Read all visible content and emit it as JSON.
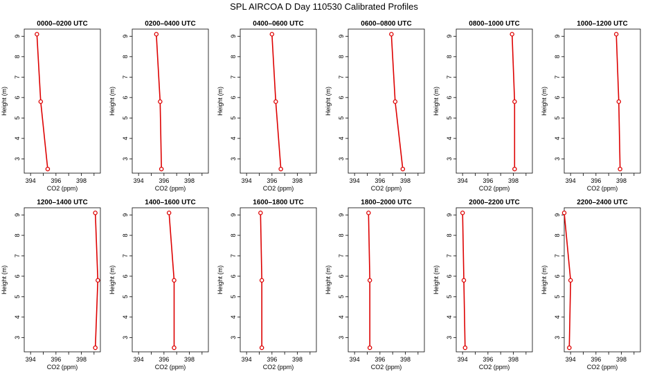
{
  "figure_title": "SPL AIRCOA D  Day 110530  Calibrated Profiles",
  "colors": {
    "profile_line": "#dd0000",
    "axes": "#000000",
    "background": "#ffffff"
  },
  "chart_data": [
    {
      "type": "line",
      "title": "0000–0200 UTC",
      "xlabel": "CO2 (ppm)",
      "ylabel": "Height (m)",
      "xlim": [
        393.5,
        399.5
      ],
      "ylim": [
        2.3,
        9.35
      ],
      "xticks": [
        394,
        396,
        398
      ],
      "yticks": [
        3,
        4,
        5,
        6,
        7,
        8,
        9
      ],
      "series": [
        {
          "x": [
            395.35,
            394.8,
            394.5
          ],
          "y": [
            2.5,
            5.8,
            9.1
          ]
        }
      ]
    },
    {
      "type": "line",
      "title": "0200–0400 UTC",
      "xlabel": "CO2 (ppm)",
      "ylabel": "Height (m)",
      "xlim": [
        393.5,
        399.5
      ],
      "ylim": [
        2.3,
        9.35
      ],
      "xticks": [
        394,
        396,
        398
      ],
      "yticks": [
        3,
        4,
        5,
        6,
        7,
        8,
        9
      ],
      "series": [
        {
          "x": [
            395.8,
            395.7,
            395.4
          ],
          "y": [
            2.5,
            5.8,
            9.1
          ]
        }
      ]
    },
    {
      "type": "line",
      "title": "0400–0600 UTC",
      "xlabel": "CO2 (ppm)",
      "ylabel": "Height (m)",
      "xlim": [
        393.5,
        399.5
      ],
      "ylim": [
        2.3,
        9.35
      ],
      "xticks": [
        394,
        396,
        398
      ],
      "yticks": [
        3,
        4,
        5,
        6,
        7,
        8,
        9
      ],
      "series": [
        {
          "x": [
            396.7,
            396.3,
            396.0
          ],
          "y": [
            2.5,
            5.8,
            9.1
          ]
        }
      ]
    },
    {
      "type": "line",
      "title": "0600–0800 UTC",
      "xlabel": "CO2 (ppm)",
      "ylabel": "Height (m)",
      "xlim": [
        393.5,
        399.5
      ],
      "ylim": [
        2.3,
        9.35
      ],
      "xticks": [
        394,
        396,
        398
      ],
      "yticks": [
        3,
        4,
        5,
        6,
        7,
        8,
        9
      ],
      "series": [
        {
          "x": [
            397.8,
            397.2,
            396.9
          ],
          "y": [
            2.5,
            5.8,
            9.1
          ]
        }
      ]
    },
    {
      "type": "line",
      "title": "0800–1000 UTC",
      "xlabel": "CO2 (ppm)",
      "ylabel": "Height (m)",
      "xlim": [
        393.5,
        399.5
      ],
      "ylim": [
        2.3,
        9.35
      ],
      "xticks": [
        394,
        396,
        398
      ],
      "yticks": [
        3,
        4,
        5,
        6,
        7,
        8,
        9
      ],
      "series": [
        {
          "x": [
            398.1,
            398.1,
            397.9
          ],
          "y": [
            2.5,
            5.8,
            9.1
          ]
        }
      ]
    },
    {
      "type": "line",
      "title": "1000–1200 UTC",
      "xlabel": "CO2 (ppm)",
      "ylabel": "Height (m)",
      "xlim": [
        393.5,
        399.5
      ],
      "ylim": [
        2.3,
        9.35
      ],
      "xticks": [
        394,
        396,
        398
      ],
      "yticks": [
        3,
        4,
        5,
        6,
        7,
        8,
        9
      ],
      "series": [
        {
          "x": [
            397.9,
            397.8,
            397.6
          ],
          "y": [
            2.5,
            5.8,
            9.1
          ]
        }
      ]
    },
    {
      "type": "line",
      "title": "1200–1400 UTC",
      "xlabel": "CO2 (ppm)",
      "ylabel": "Height (m)",
      "xlim": [
        393.5,
        399.5
      ],
      "ylim": [
        2.3,
        9.35
      ],
      "xticks": [
        394,
        396,
        398
      ],
      "yticks": [
        3,
        4,
        5,
        6,
        7,
        8,
        9
      ],
      "series": [
        {
          "x": [
            399.1,
            399.3,
            399.1
          ],
          "y": [
            2.5,
            5.8,
            9.1
          ]
        }
      ]
    },
    {
      "type": "line",
      "title": "1400–1600 UTC",
      "xlabel": "CO2 (ppm)",
      "ylabel": "Height (m)",
      "xlim": [
        393.5,
        399.5
      ],
      "ylim": [
        2.3,
        9.35
      ],
      "xticks": [
        394,
        396,
        398
      ],
      "yticks": [
        3,
        4,
        5,
        6,
        7,
        8,
        9
      ],
      "series": [
        {
          "x": [
            396.8,
            396.8,
            396.4
          ],
          "y": [
            2.5,
            5.8,
            9.1
          ]
        }
      ]
    },
    {
      "type": "line",
      "title": "1600–1800 UTC",
      "xlabel": "CO2 (ppm)",
      "ylabel": "Height (m)",
      "xlim": [
        393.5,
        399.5
      ],
      "ylim": [
        2.3,
        9.35
      ],
      "xticks": [
        394,
        396,
        398
      ],
      "yticks": [
        3,
        4,
        5,
        6,
        7,
        8,
        9
      ],
      "series": [
        {
          "x": [
            395.2,
            395.2,
            395.1
          ],
          "y": [
            2.5,
            5.8,
            9.1
          ]
        }
      ]
    },
    {
      "type": "line",
      "title": "1800–2000 UTC",
      "xlabel": "CO2 (ppm)",
      "ylabel": "Height (m)",
      "xlim": [
        393.5,
        399.5
      ],
      "ylim": [
        2.3,
        9.35
      ],
      "xticks": [
        394,
        396,
        398
      ],
      "yticks": [
        3,
        4,
        5,
        6,
        7,
        8,
        9
      ],
      "series": [
        {
          "x": [
            395.2,
            395.2,
            395.1
          ],
          "y": [
            2.5,
            5.8,
            9.1
          ]
        }
      ]
    },
    {
      "type": "line",
      "title": "2000–2200 UTC",
      "xlabel": "CO2 (ppm)",
      "ylabel": "Height (m)",
      "xlim": [
        393.5,
        399.5
      ],
      "ylim": [
        2.3,
        9.35
      ],
      "xticks": [
        394,
        396,
        398
      ],
      "yticks": [
        3,
        4,
        5,
        6,
        7,
        8,
        9
      ],
      "series": [
        {
          "x": [
            394.2,
            394.1,
            394.0
          ],
          "y": [
            2.5,
            5.8,
            9.1
          ]
        }
      ]
    },
    {
      "type": "line",
      "title": "2200–2400 UTC",
      "xlabel": "CO2 (ppm)",
      "ylabel": "Height (m)",
      "xlim": [
        393.5,
        399.5
      ],
      "ylim": [
        2.3,
        9.35
      ],
      "xticks": [
        394,
        396,
        398
      ],
      "yticks": [
        3,
        4,
        5,
        6,
        7,
        8,
        9
      ],
      "series": [
        {
          "x": [
            393.9,
            394.0,
            393.5
          ],
          "y": [
            2.5,
            5.8,
            9.1
          ]
        }
      ]
    }
  ]
}
